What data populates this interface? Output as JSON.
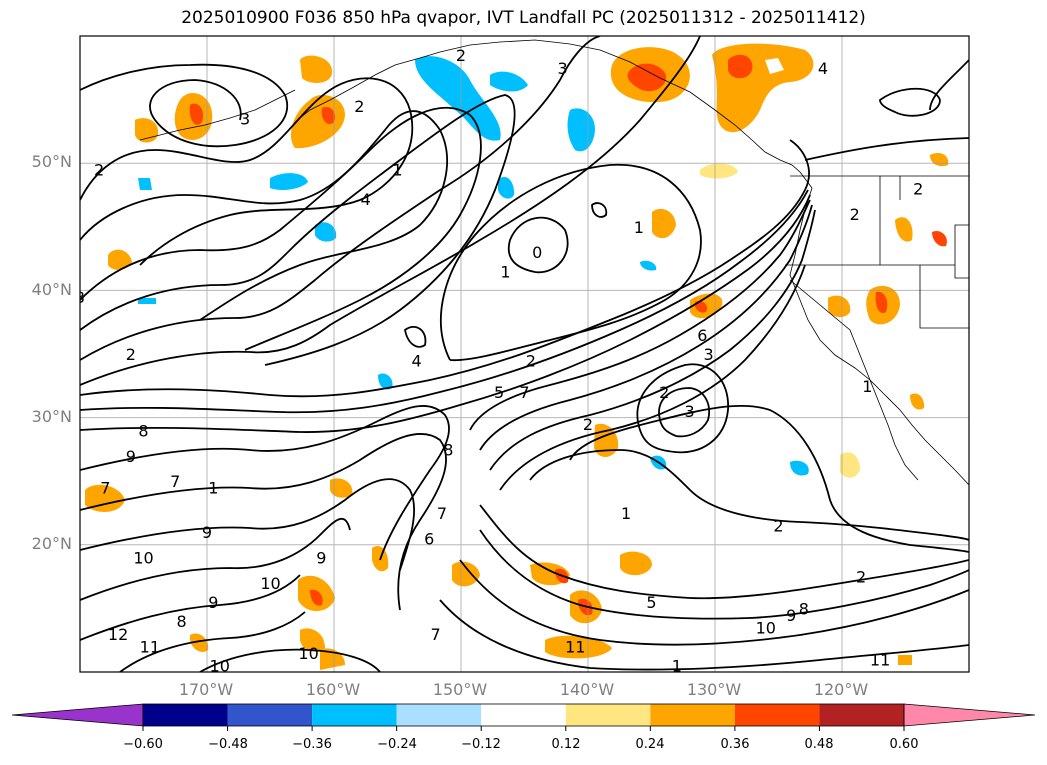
{
  "title": "2025010900 F036 850 hPa qvapor, IVT Landfall PC (2025011312 - 2025011412)",
  "lat_labels": [
    "50°N",
    "40°N",
    "30°N",
    "20°N"
  ],
  "lon_labels": [
    "170°W",
    "160°W",
    "150°W",
    "140°W",
    "130°W",
    "120°W"
  ],
  "colorbar": {
    "ticks": [
      "−0.60",
      "−0.48",
      "−0.36",
      "−0.24",
      "−0.12",
      "0.12",
      "0.24",
      "0.36",
      "0.48",
      "0.60"
    ],
    "colors": [
      "#9933cc",
      "#00008b",
      "#3355cc",
      "#00bfff",
      "#aadfff",
      "#ffffff",
      "#ffe680",
      "#ffa500",
      "#ff4500",
      "#b22222",
      "#ff88aa"
    ]
  },
  "contour_labels": [
    {
      "text": "2",
      "lat": 49.5,
      "lon": -178.5
    },
    {
      "text": "3",
      "lat": 53.5,
      "lon": -167.0
    },
    {
      "text": "2",
      "lat": 54.5,
      "lon": -158.0
    },
    {
      "text": "1",
      "lat": 49.5,
      "lon": -155.0
    },
    {
      "text": "4",
      "lat": 47.2,
      "lon": -157.5
    },
    {
      "text": "2",
      "lat": 58.5,
      "lon": -150.0
    },
    {
      "text": "3",
      "lat": 57.5,
      "lon": -142.0
    },
    {
      "text": "4",
      "lat": 57.5,
      "lon": -121.5
    },
    {
      "text": "2",
      "lat": 48.0,
      "lon": -114.0
    },
    {
      "text": "2",
      "lat": 46.0,
      "lon": -119.0
    },
    {
      "text": "1",
      "lat": 45.0,
      "lon": -136.0
    },
    {
      "text": "0",
      "lat": 43.0,
      "lon": -144.0
    },
    {
      "text": "1",
      "lat": 41.5,
      "lon": -146.5
    },
    {
      "text": "3",
      "lat": 39.5,
      "lon": -180.0
    },
    {
      "text": "2",
      "lat": 35.0,
      "lon": -176.0
    },
    {
      "text": "4",
      "lat": 34.5,
      "lon": -153.5
    },
    {
      "text": "2",
      "lat": 34.5,
      "lon": -144.5
    },
    {
      "text": "5",
      "lat": 32.0,
      "lon": -147.0
    },
    {
      "text": "7",
      "lat": 32.0,
      "lon": -145.0
    },
    {
      "text": "6",
      "lat": 36.5,
      "lon": -131.0
    },
    {
      "text": "3",
      "lat": 35.0,
      "lon": -130.5
    },
    {
      "text": "2",
      "lat": 32.0,
      "lon": -134.0
    },
    {
      "text": "3",
      "lat": 30.5,
      "lon": -132.0
    },
    {
      "text": "2",
      "lat": 29.5,
      "lon": -140.0
    },
    {
      "text": "1",
      "lat": 32.5,
      "lon": -118.0
    },
    {
      "text": "8",
      "lat": 29.0,
      "lon": -175.0
    },
    {
      "text": "9",
      "lat": 27.0,
      "lon": -176.0
    },
    {
      "text": "7",
      "lat": 24.5,
      "lon": -178.0
    },
    {
      "text": "7",
      "lat": 25.0,
      "lon": -172.5
    },
    {
      "text": "1",
      "lat": 24.5,
      "lon": -169.5
    },
    {
      "text": "8",
      "lat": 27.5,
      "lon": -151.0
    },
    {
      "text": "9",
      "lat": 21.0,
      "lon": -170.0
    },
    {
      "text": "10",
      "lat": 19.0,
      "lon": -175.0
    },
    {
      "text": "9",
      "lat": 19.0,
      "lon": -161.0
    },
    {
      "text": "10",
      "lat": 17.0,
      "lon": -165.0
    },
    {
      "text": "9",
      "lat": 15.5,
      "lon": -169.5
    },
    {
      "text": "8",
      "lat": 14.0,
      "lon": -172.0
    },
    {
      "text": "12",
      "lat": 13.0,
      "lon": -177.0
    },
    {
      "text": "11",
      "lat": 12.0,
      "lon": -174.5
    },
    {
      "text": "10",
      "lat": 10.5,
      "lon": -169.0
    },
    {
      "text": "10",
      "lat": 11.5,
      "lon": -162.0
    },
    {
      "text": "6",
      "lat": 20.5,
      "lon": -152.5
    },
    {
      "text": "7",
      "lat": 22.5,
      "lon": -151.5
    },
    {
      "text": "7",
      "lat": 13.0,
      "lon": -152.0
    },
    {
      "text": "1",
      "lat": 22.5,
      "lon": -137.0
    },
    {
      "text": "2",
      "lat": 21.5,
      "lon": -125.0
    },
    {
      "text": "5",
      "lat": 15.5,
      "lon": -135.0
    },
    {
      "text": "10",
      "lat": 13.5,
      "lon": -126.0
    },
    {
      "text": "9",
      "lat": 14.5,
      "lon": -124.0
    },
    {
      "text": "8",
      "lat": 15.0,
      "lon": -123.0
    },
    {
      "text": "11",
      "lat": 12.0,
      "lon": -141.0
    },
    {
      "text": "11",
      "lat": 11.0,
      "lon": -117.0
    },
    {
      "text": "2",
      "lat": 17.5,
      "lon": -118.5
    },
    {
      "text": "1",
      "lat": 10.5,
      "lon": -133.0
    }
  ]
}
